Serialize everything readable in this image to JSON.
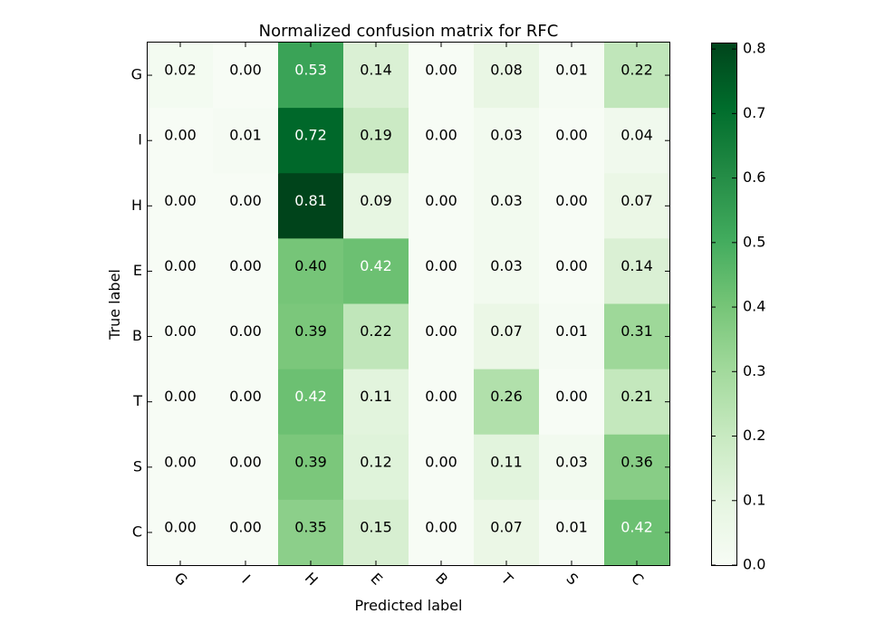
{
  "chart_data": {
    "type": "heatmap",
    "title": "Normalized confusion matrix for RFC",
    "xlabel": "Predicted label",
    "ylabel": "True label",
    "x_categories": [
      "G",
      "I",
      "H",
      "E",
      "B",
      "T",
      "S",
      "C"
    ],
    "y_categories": [
      "G",
      "I",
      "H",
      "E",
      "B",
      "T",
      "S",
      "C"
    ],
    "values": [
      [
        0.02,
        0.0,
        0.53,
        0.14,
        0.0,
        0.08,
        0.01,
        0.22
      ],
      [
        0.0,
        0.01,
        0.72,
        0.19,
        0.0,
        0.03,
        0.0,
        0.04
      ],
      [
        0.0,
        0.0,
        0.81,
        0.09,
        0.0,
        0.03,
        0.0,
        0.07
      ],
      [
        0.0,
        0.0,
        0.4,
        0.42,
        0.0,
        0.03,
        0.0,
        0.14
      ],
      [
        0.0,
        0.0,
        0.39,
        0.22,
        0.0,
        0.07,
        0.01,
        0.31
      ],
      [
        0.0,
        0.0,
        0.42,
        0.11,
        0.0,
        0.26,
        0.0,
        0.21
      ],
      [
        0.0,
        0.0,
        0.39,
        0.12,
        0.0,
        0.11,
        0.03,
        0.36
      ],
      [
        0.0,
        0.0,
        0.35,
        0.15,
        0.0,
        0.07,
        0.01,
        0.42
      ]
    ],
    "colormap": "Greens",
    "colorbar": {
      "range": [
        0.0,
        0.81
      ],
      "ticks": [
        0.0,
        0.1,
        0.2,
        0.3,
        0.4,
        0.5,
        0.6,
        0.7,
        0.8
      ],
      "tick_labels": [
        "0.0",
        "0.1",
        "0.2",
        "0.3",
        "0.4",
        "0.5",
        "0.6",
        "0.7",
        "0.8"
      ]
    },
    "cell_labels_format": "0.00"
  }
}
